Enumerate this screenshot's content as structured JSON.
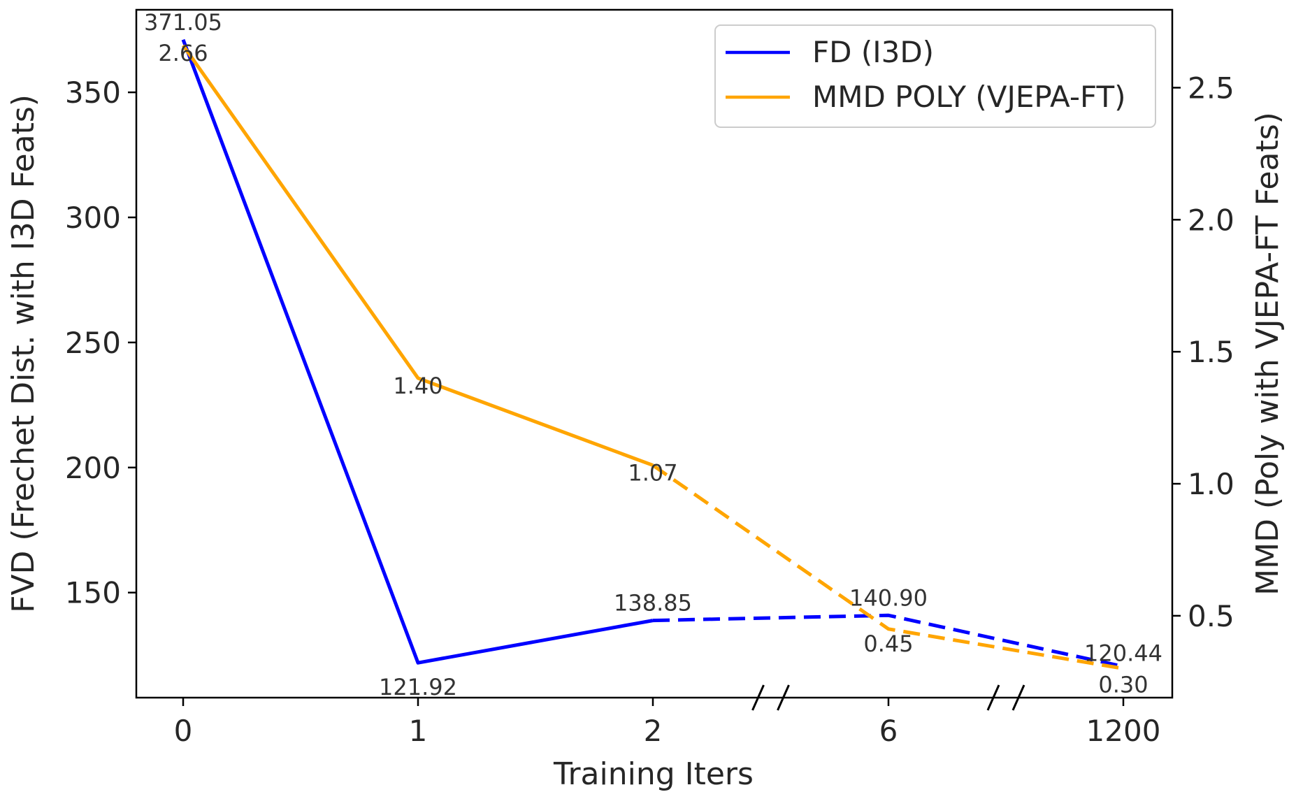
{
  "chart_data": {
    "type": "line",
    "categories": [
      "0",
      "1",
      "2",
      "6",
      "1200"
    ],
    "xlabel": "Training Iters",
    "ylabel_left": "FVD (Frechet Dist. with I3D Feats)",
    "ylabel_right": "MMD (Poly with VJEPA-FT Feats)",
    "ylim_left": [
      108,
      383
    ],
    "ylim_right": [
      0.19,
      2.795
    ],
    "yticks_left": [
      150,
      200,
      250,
      300,
      350
    ],
    "yticks_right": [
      0.5,
      1.0,
      1.5,
      2.0,
      2.5
    ],
    "ytick_labels_left": [
      "150",
      "200",
      "250",
      "300",
      "350"
    ],
    "ytick_labels_right": [
      "0.5",
      "1.0",
      "1.5",
      "2.0",
      "2.5"
    ],
    "axis_breaks_after_index": [
      2,
      3
    ],
    "dashed_from_index": 2,
    "legend_position": "top-right",
    "series": [
      {
        "name": "FD (I3D)",
        "axis": "left",
        "color": "#0000ff",
        "values": [
          371.05,
          121.92,
          138.85,
          140.9,
          120.44
        ],
        "labels": [
          "371.05",
          "121.92",
          "138.85",
          "140.90",
          "120.44"
        ]
      },
      {
        "name": "MMD POLY (VJEPA-FT)",
        "axis": "right",
        "color": "#ffa500",
        "values": [
          2.66,
          1.4,
          1.07,
          0.45,
          0.3
        ],
        "labels": [
          "2.66",
          "1.40",
          "1.07",
          "0.45",
          "0.30"
        ]
      }
    ]
  }
}
